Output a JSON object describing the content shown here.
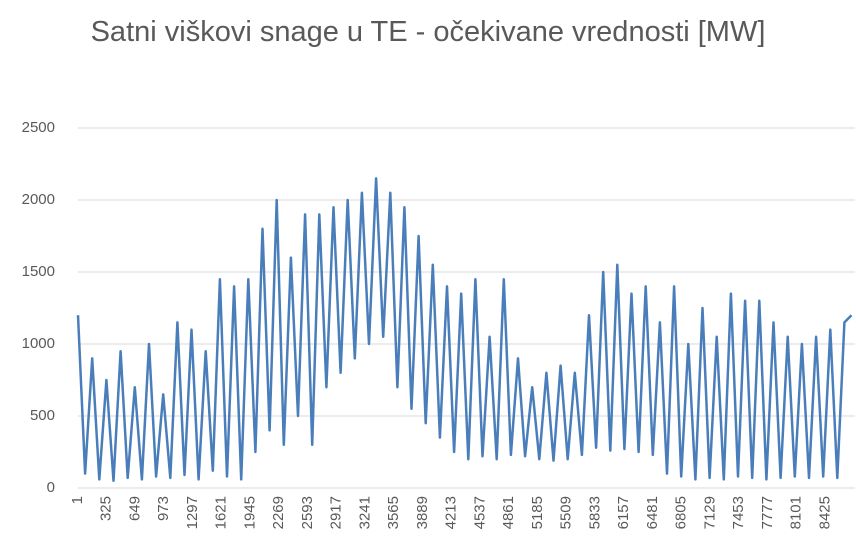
{
  "chart_data": {
    "type": "line",
    "title": "Satni viškovi snage u TE - očekivane vrednosti [MW]",
    "x": [
      1,
      81,
      161,
      241,
      321,
      401,
      481,
      561,
      641,
      721,
      801,
      881,
      961,
      1041,
      1121,
      1201,
      1281,
      1361,
      1441,
      1521,
      1601,
      1681,
      1761,
      1841,
      1921,
      2001,
      2081,
      2161,
      2241,
      2321,
      2401,
      2481,
      2561,
      2641,
      2721,
      2801,
      2881,
      2961,
      3041,
      3121,
      3201,
      3281,
      3361,
      3441,
      3521,
      3601,
      3681,
      3761,
      3841,
      3921,
      4001,
      4081,
      4161,
      4241,
      4321,
      4401,
      4481,
      4561,
      4641,
      4721,
      4801,
      4881,
      4961,
      5041,
      5121,
      5201,
      5281,
      5361,
      5441,
      5521,
      5601,
      5681,
      5761,
      5841,
      5921,
      6001,
      6081,
      6161,
      6241,
      6321,
      6401,
      6481,
      6561,
      6641,
      6721,
      6801,
      6881,
      6961,
      7041,
      7121,
      7201,
      7281,
      7361,
      7441,
      7521,
      7601,
      7681,
      7761,
      7841,
      7921,
      8001,
      8081,
      8161,
      8241,
      8321,
      8401,
      8481,
      8561,
      8641,
      8721
    ],
    "series": [
      {
        "name": "Satni viškovi",
        "color": "#4a7ebb",
        "values": [
          1200,
          100,
          900,
          60,
          750,
          50,
          950,
          70,
          700,
          60,
          1000,
          80,
          650,
          70,
          1150,
          90,
          1100,
          60,
          950,
          120,
          1450,
          80,
          1400,
          60,
          1450,
          250,
          1800,
          400,
          2000,
          300,
          1600,
          500,
          1900,
          300,
          1900,
          700,
          1950,
          800,
          2000,
          900,
          2050,
          1000,
          2150,
          1050,
          2050,
          700,
          1950,
          550,
          1750,
          450,
          1550,
          350,
          1400,
          250,
          1350,
          200,
          1450,
          220,
          1050,
          200,
          1450,
          230,
          900,
          220,
          700,
          200,
          800,
          190,
          850,
          200,
          800,
          230,
          1200,
          280,
          1500,
          260,
          1550,
          270,
          1350,
          250,
          1400,
          230,
          1150,
          100,
          1400,
          80,
          1000,
          60,
          1250,
          70,
          1050,
          60,
          1350,
          80,
          1300,
          70,
          1300,
          60,
          1150,
          70,
          1050,
          80,
          1000,
          70,
          1050,
          80,
          1100,
          70,
          1150,
          1200
        ]
      }
    ],
    "xlim": [
      1,
      8760
    ],
    "xticks": [
      1,
      325,
      649,
      973,
      1297,
      1621,
      1945,
      2269,
      2593,
      2917,
      3241,
      3565,
      3889,
      4213,
      4537,
      4861,
      5185,
      5509,
      5833,
      6157,
      6481,
      6805,
      7129,
      7453,
      7777,
      8101,
      8425
    ],
    "ylim": [
      0,
      2500
    ],
    "yticks": [
      0,
      500,
      1000,
      1500,
      2000,
      2500
    ],
    "grid": true
  }
}
